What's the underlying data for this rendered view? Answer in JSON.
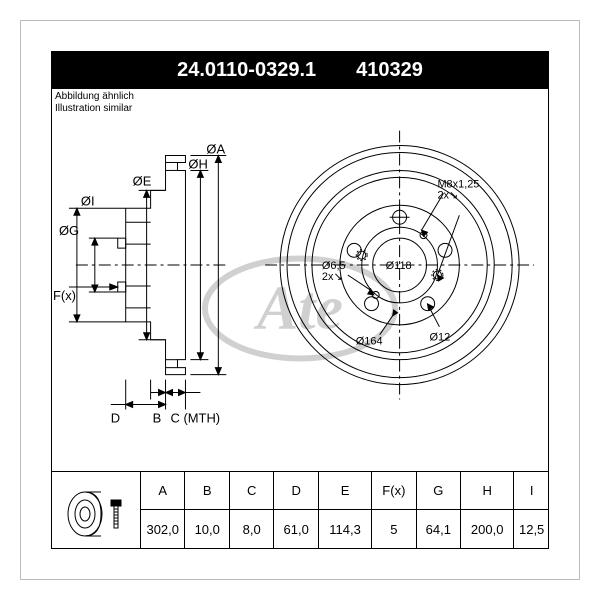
{
  "header": {
    "part_number": "24.0110-0329.1",
    "alt_number": "410329"
  },
  "subtitle": {
    "line1": "Abbildung ähnlich",
    "line2": "Illustration similar"
  },
  "diagram": {
    "stroke": "#000000",
    "stroke_width": 1,
    "side_view": {
      "labels": [
        "ØI",
        "ØG",
        "F(x)",
        "ØE",
        "ØH",
        "ØA"
      ],
      "bottom_labels": {
        "D": "D",
        "B": "B",
        "C": "C (MTH)"
      }
    },
    "front_view": {
      "center_label": "Ø118",
      "annotations": [
        {
          "text": "M8x1,25",
          "sub": "2x"
        },
        {
          "text": "Ø6,5",
          "sub": "2x"
        },
        {
          "text": "Ø164",
          "sub": ""
        },
        {
          "text": "Ø12",
          "sub": ""
        }
      ]
    }
  },
  "spec_table": {
    "columns": [
      {
        "h": "A",
        "v": "302,0",
        "wide": false
      },
      {
        "h": "B",
        "v": "10,0",
        "wide": false
      },
      {
        "h": "C",
        "v": "8,0",
        "wide": false
      },
      {
        "h": "D",
        "v": "61,0",
        "wide": false
      },
      {
        "h": "E",
        "v": "114,3",
        "wide": true
      },
      {
        "h": "F(x)",
        "v": "5",
        "wide": false
      },
      {
        "h": "G",
        "v": "64,1",
        "wide": false
      },
      {
        "h": "H",
        "v": "200,0",
        "wide": true
      },
      {
        "h": "I",
        "v": "12,5",
        "wide": false
      }
    ]
  },
  "watermark": {
    "text": "Ate"
  },
  "colors": {
    "bg": "#ffffff",
    "fg": "#000000",
    "border": "#bbbbbb"
  }
}
